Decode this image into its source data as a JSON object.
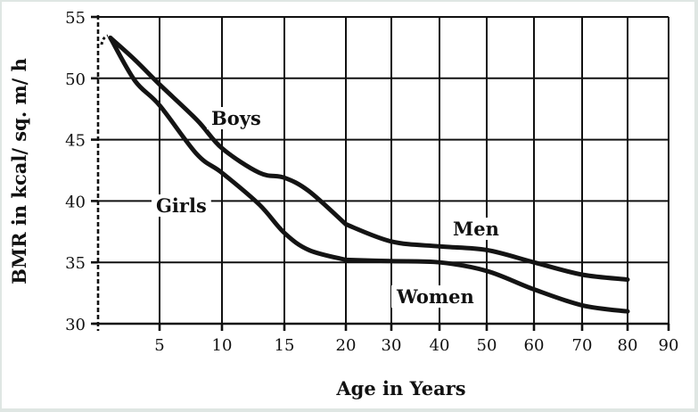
{
  "chart_data": {
    "type": "line",
    "xlabel": "Age in Years",
    "ylabel": "BMR in kcal/ sq. m/ h",
    "ylim": [
      30,
      55
    ],
    "yticks": [
      "30",
      "35",
      "40",
      "45",
      "50",
      "55"
    ],
    "xticks": [
      "5",
      "10",
      "15",
      "20",
      "30",
      "40",
      "50",
      "60",
      "70",
      "80",
      "90"
    ],
    "grid": true,
    "x_scale": "mixed: 0-20 spaced by 1-year units, 20-90 spaced by 10-year units",
    "series": [
      {
        "name": "Boys",
        "x": [
          1,
          3,
          5,
          8,
          10,
          13,
          15,
          17,
          20
        ],
        "y": [
          53.3,
          51.5,
          49.5,
          46.6,
          44.3,
          42.3,
          41.9,
          40.8,
          38.1
        ]
      },
      {
        "name": "Girls",
        "x": [
          1,
          3,
          5,
          8,
          10,
          13,
          15,
          17,
          20
        ],
        "y": [
          53.3,
          49.8,
          47.8,
          43.8,
          42.3,
          39.7,
          37.4,
          36.0,
          35.2
        ]
      },
      {
        "name": "Men",
        "x": [
          20,
          30,
          40,
          50,
          60,
          70,
          80
        ],
        "y": [
          38.1,
          36.7,
          36.3,
          36.0,
          35.0,
          34.0,
          33.6
        ]
      },
      {
        "name": "Women",
        "x": [
          20,
          30,
          40,
          50,
          60,
          70,
          80
        ],
        "y": [
          35.2,
          35.1,
          35.0,
          34.3,
          32.8,
          31.5,
          31.0
        ]
      }
    ]
  }
}
